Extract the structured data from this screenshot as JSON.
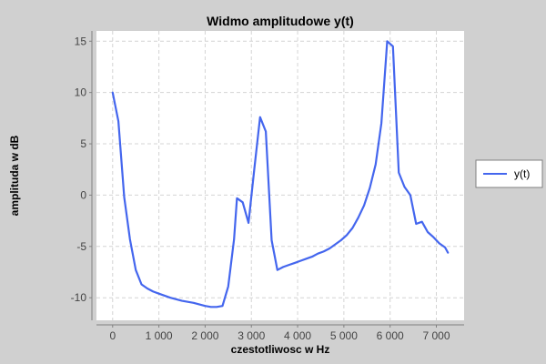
{
  "chart_data": {
    "type": "line",
    "title": "Widmo amplitudowe y(t)",
    "xlabel": "czestotliwosc w Hz",
    "ylabel": "amplituda w dB",
    "xlim": [
      -350,
      7600
    ],
    "ylim": [
      -12.2,
      16.0
    ],
    "grid": true,
    "legend_position": "right",
    "x_ticks": [
      0,
      1000,
      2000,
      3000,
      4000,
      5000,
      6000,
      7000
    ],
    "x_tick_labels": [
      "0",
      "1 000",
      "2 000",
      "3 000",
      "4 000",
      "5 000",
      "6 000",
      "7 000"
    ],
    "y_ticks": [
      -10,
      -5,
      0,
      5,
      10,
      15
    ],
    "y_tick_labels": [
      "-10",
      "-5",
      "0",
      "5",
      "10",
      "15"
    ],
    "series": [
      {
        "name": "y(t)",
        "color": "#4466ee",
        "x": [
          0,
          125,
          250,
          375,
          500,
          625,
          750,
          875,
          1000,
          1250,
          1500,
          1750,
          2000,
          2125,
          2250,
          2375,
          2500,
          2625,
          2688,
          2812,
          2938,
          3062,
          3188,
          3312,
          3438,
          3562,
          3688,
          3812,
          3938,
          4062,
          4188,
          4312,
          4438,
          4562,
          4688,
          4812,
          4938,
          5062,
          5188,
          5312,
          5438,
          5562,
          5688,
          5812,
          5938,
          6062,
          6188,
          6312,
          6438,
          6562,
          6688,
          6812,
          6938,
          7062,
          7188,
          7250
        ],
        "y": [
          10.0,
          7.2,
          -0.2,
          -4.3,
          -7.3,
          -8.7,
          -9.1,
          -9.4,
          -9.6,
          -10.0,
          -10.3,
          -10.5,
          -10.8,
          -10.9,
          -10.9,
          -10.8,
          -8.9,
          -4.3,
          -0.3,
          -0.7,
          -2.7,
          2.5,
          7.6,
          6.2,
          -4.4,
          -7.3,
          -7.0,
          -6.8,
          -6.6,
          -6.4,
          -6.2,
          -6.0,
          -5.7,
          -5.5,
          -5.2,
          -4.8,
          -4.4,
          -3.9,
          -3.2,
          -2.2,
          -1.0,
          0.7,
          3.0,
          7.0,
          15.0,
          14.5,
          2.2,
          0.8,
          0.0,
          -2.8,
          -2.6,
          -3.6,
          -4.1,
          -4.7,
          -5.1,
          -5.6
        ]
      }
    ]
  }
}
